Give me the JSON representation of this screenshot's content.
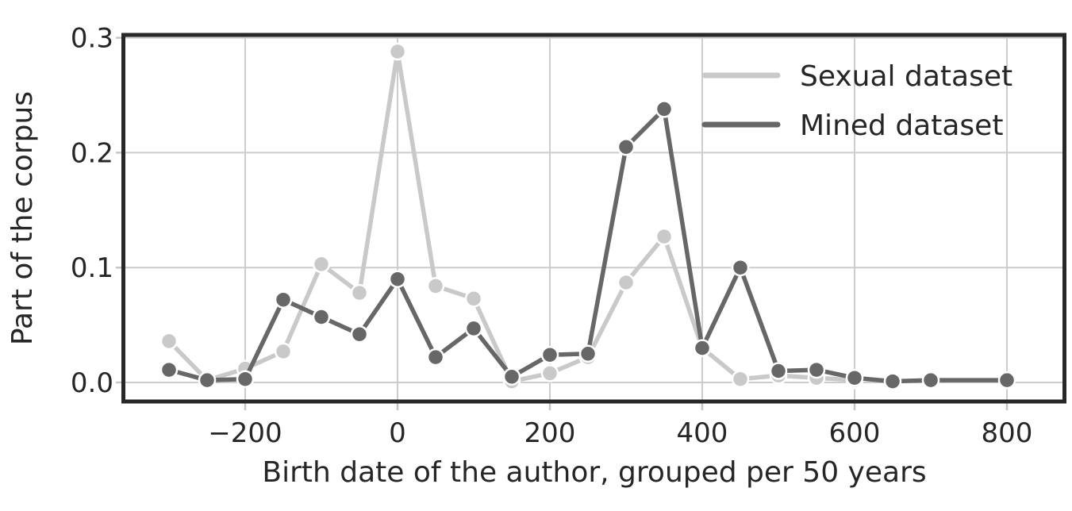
{
  "figure": {
    "background": "#ffffff",
    "frame_color": "#282828",
    "grid_color": "#cccccc",
    "tick_color": "#c6c6c6",
    "text_color": "#262626",
    "marker_edge_color": "#ffffff"
  },
  "chart_data": {
    "type": "line",
    "title": "",
    "xlabel": "Birth date of the author, grouped per 50 years",
    "ylabel": "Part of the corpus",
    "grid": true,
    "legend_position": "upper right",
    "xlim": [
      -360,
      877
    ],
    "ylim": [
      -0.017,
      0.3
    ],
    "x_ticks": {
      "values": [
        -200,
        0,
        200,
        400,
        600,
        800
      ],
      "labels": [
        "−200",
        "0",
        "200",
        "400",
        "600",
        "800"
      ]
    },
    "y_ticks": {
      "values": [
        0.0,
        0.1,
        0.2,
        0.3
      ],
      "labels": [
        "0.0",
        "0.1",
        "0.2",
        "0.3"
      ]
    },
    "series": [
      {
        "name": "Sexual dataset",
        "color": "#c9c9c9",
        "x": [
          -300,
          -250,
          -200,
          -150,
          -100,
          -50,
          0,
          50,
          100,
          150,
          200,
          250,
          300,
          350,
          400,
          450,
          500,
          550,
          600
        ],
        "y": [
          0.036,
          0.002,
          0.012,
          0.027,
          0.103,
          0.078,
          0.288,
          0.084,
          0.073,
          0.001,
          0.008,
          0.022,
          0.087,
          0.127,
          0.03,
          0.003,
          0.006,
          0.004,
          0.002
        ]
      },
      {
        "name": "Mined dataset",
        "color": "#676767",
        "x": [
          -300,
          -250,
          -200,
          -150,
          -100,
          -50,
          0,
          50,
          100,
          150,
          200,
          250,
          300,
          350,
          400,
          450,
          500,
          550,
          600,
          650,
          700,
          800
        ],
        "y": [
          0.011,
          0.002,
          0.003,
          0.072,
          0.057,
          0.042,
          0.09,
          0.022,
          0.047,
          0.005,
          0.024,
          0.025,
          0.205,
          0.238,
          0.03,
          0.1,
          0.01,
          0.011,
          0.004,
          0.001,
          0.002,
          0.002
        ]
      }
    ]
  }
}
